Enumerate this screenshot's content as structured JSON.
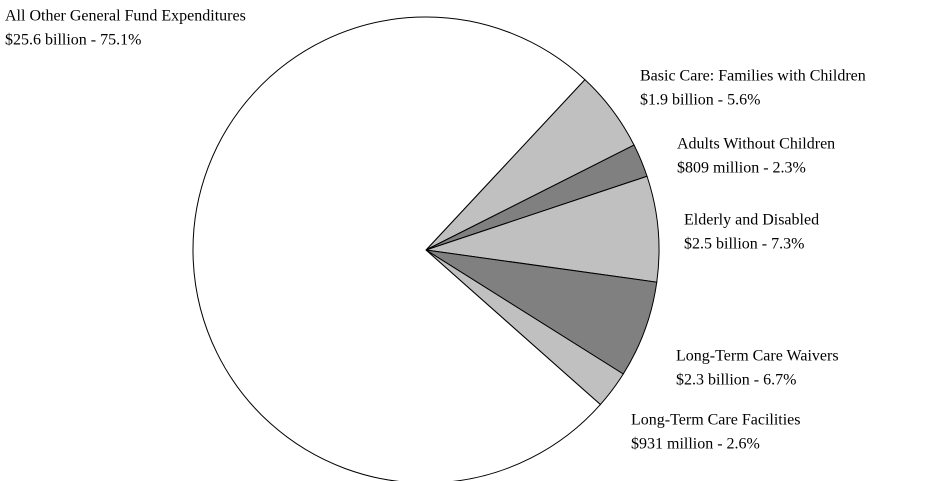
{
  "chart_data": {
    "type": "pie",
    "categories": [
      "Basic Care: Families with Children",
      "Adults Without Children",
      "Elderly and Disabled",
      "Long-Term Care Waivers",
      "Long-Term Care Facilities",
      "All Other General Fund Expenditures"
    ],
    "values": [
      5.6,
      2.3,
      7.3,
      6.7,
      2.6,
      75.1
    ],
    "value_labels": [
      "$1.9 billion - 5.6%",
      "$809 million - 2.3%",
      "$2.5 billion - 7.3%",
      "$2.3 billion - 6.7%",
      "$931 million - 2.6%",
      "$25.6 billion - 75.1%"
    ],
    "colors": [
      "#c0c0c0",
      "#808080",
      "#c0c0c0",
      "#808080",
      "#c0c0c0",
      "#ffffff"
    ]
  }
}
